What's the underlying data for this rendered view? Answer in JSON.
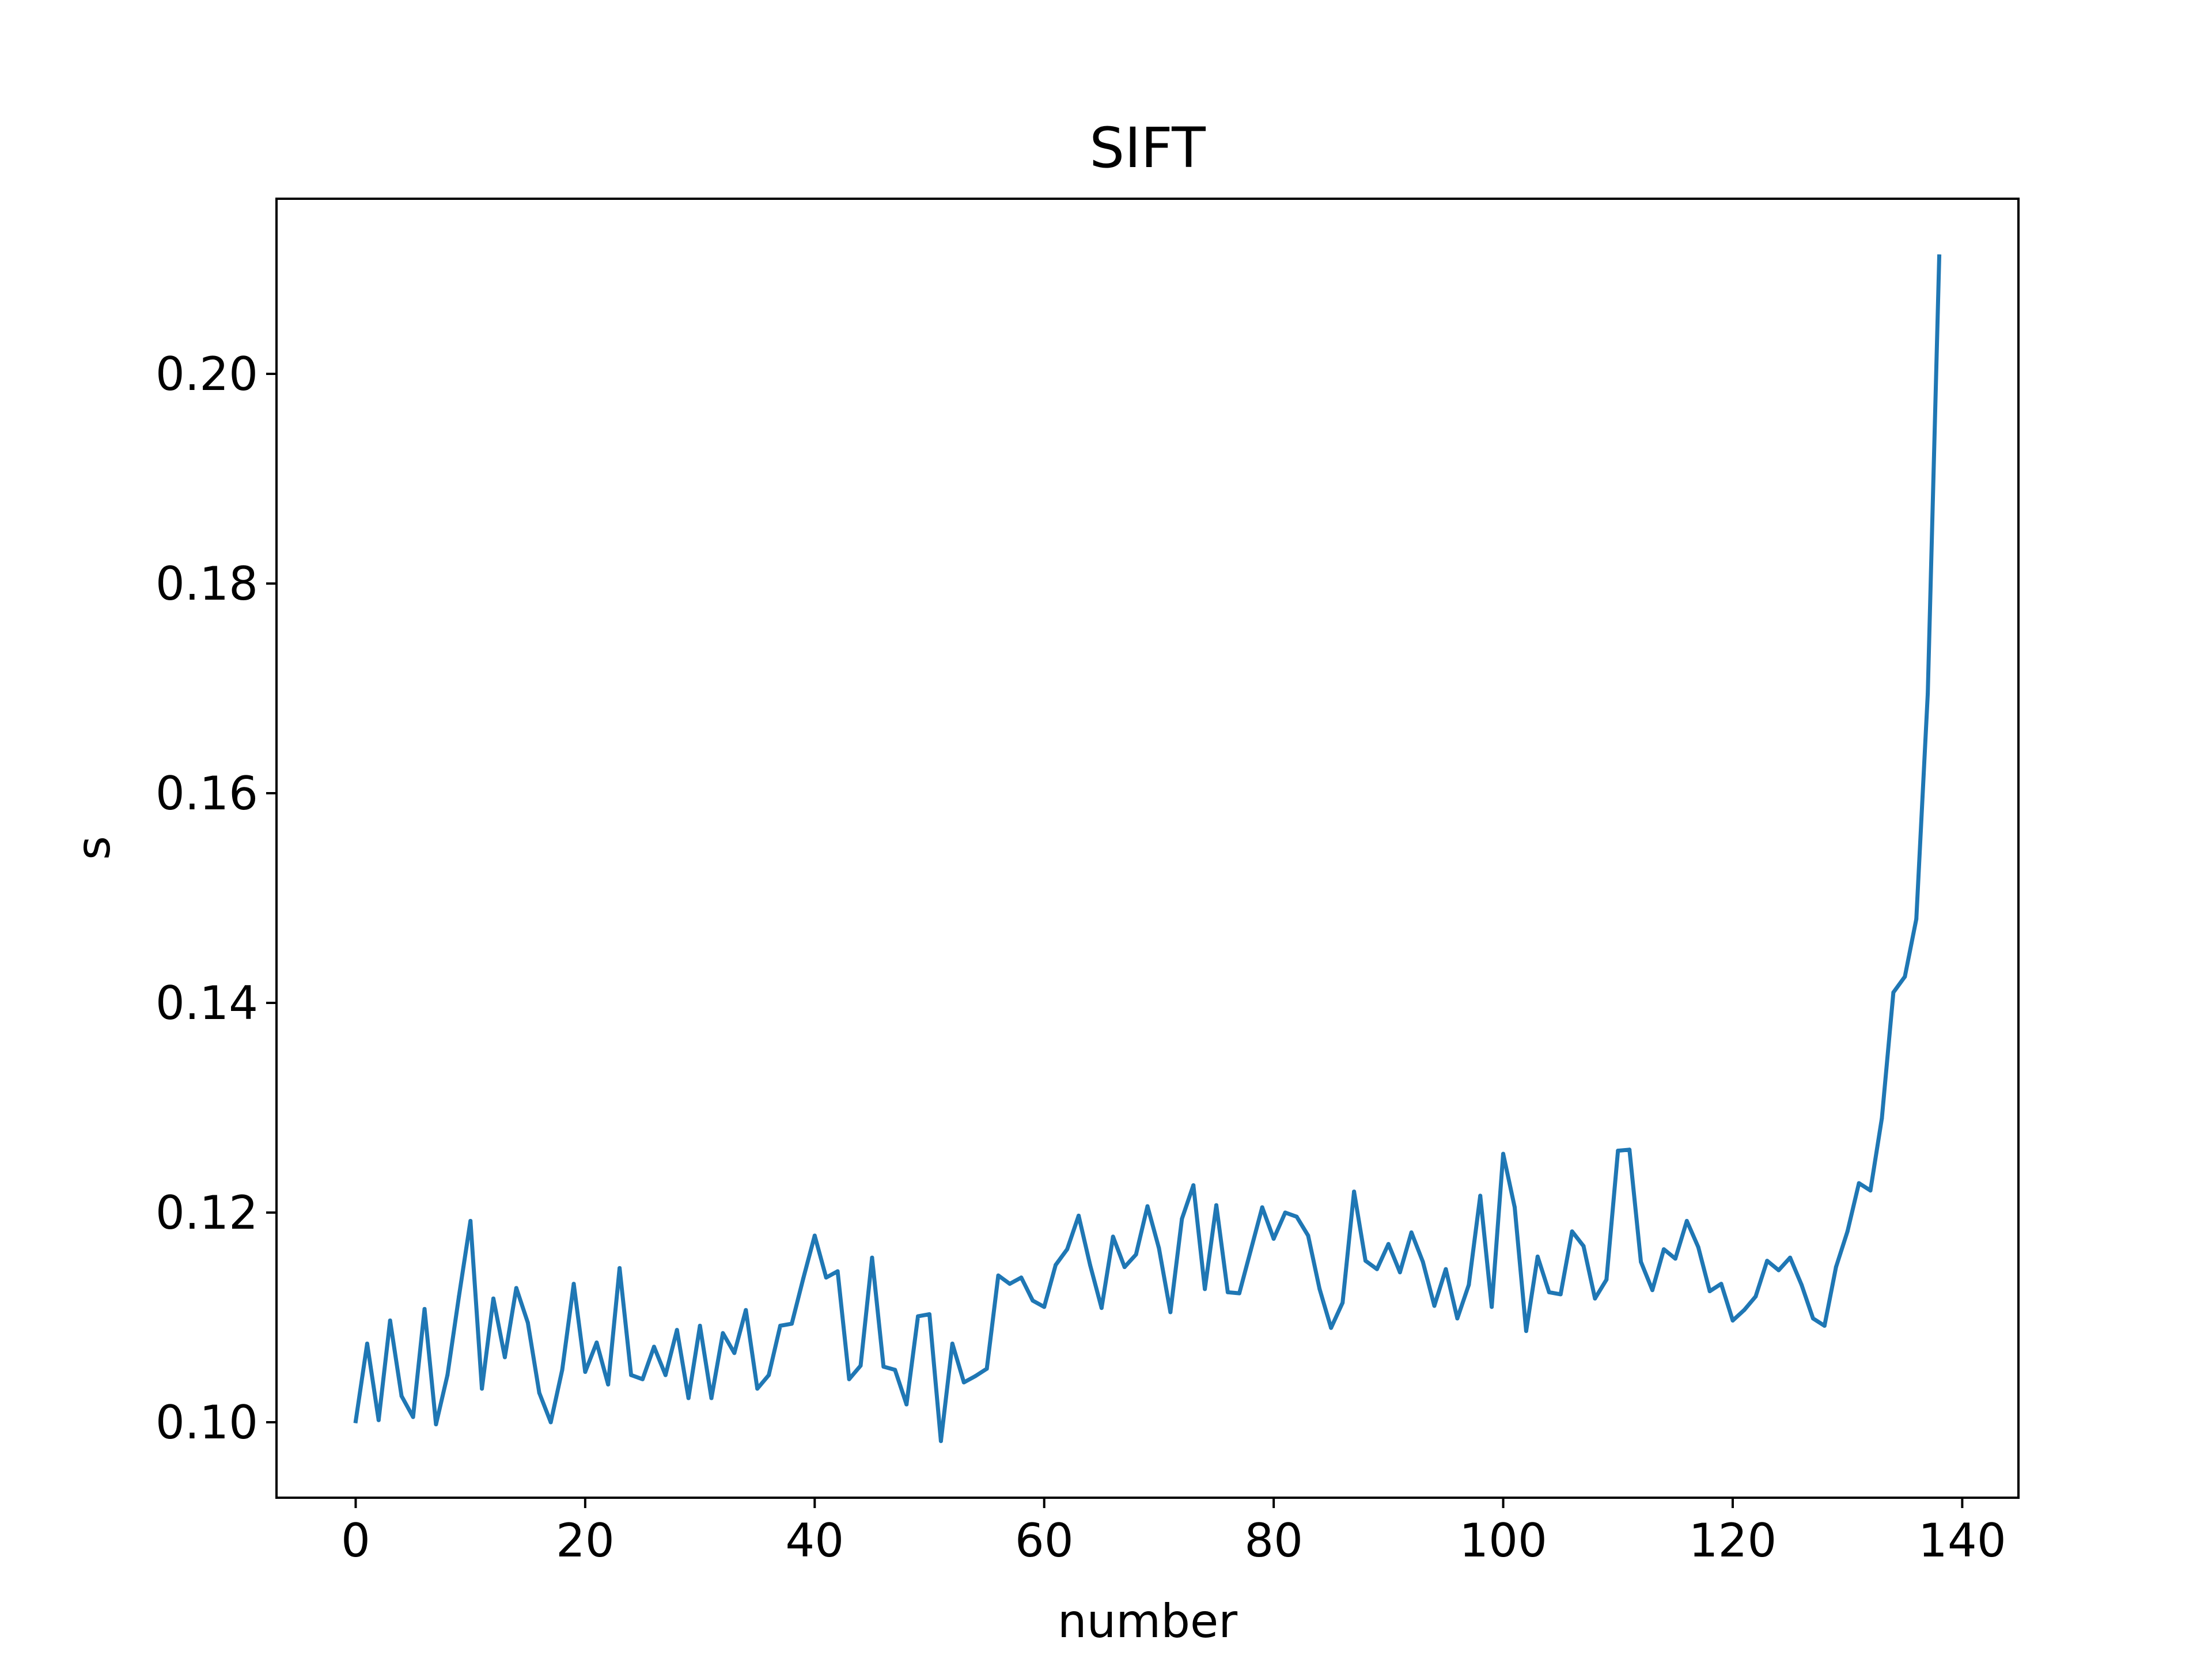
{
  "chart_data": {
    "type": "line",
    "title": "SIFT",
    "xlabel": "number",
    "ylabel": "s",
    "xlim": [
      -6.9,
      144.9
    ],
    "ylim": [
      0.0928,
      0.2167
    ],
    "xticks": [
      0,
      20,
      40,
      60,
      80,
      100,
      120,
      140
    ],
    "yticks": [
      0.1,
      0.12,
      0.14,
      0.16,
      0.18,
      0.2
    ],
    "xtick_labels": [
      "0",
      "20",
      "40",
      "60",
      "80",
      "100",
      "120",
      "140"
    ],
    "ytick_labels": [
      "0.10",
      "0.12",
      "0.14",
      "0.16",
      "0.18",
      "0.20"
    ],
    "grid": false,
    "legend": "none",
    "series": [
      {
        "color": "#1f77b4",
        "x": [
          0,
          1,
          2,
          3,
          4,
          5,
          6,
          7,
          8,
          9,
          10,
          11,
          12,
          13,
          14,
          15,
          16,
          17,
          18,
          19,
          20,
          21,
          22,
          23,
          24,
          25,
          26,
          27,
          28,
          29,
          30,
          31,
          32,
          33,
          34,
          35,
          36,
          37,
          38,
          39,
          40,
          41,
          42,
          43,
          44,
          45,
          46,
          47,
          48,
          49,
          50,
          51,
          52,
          53,
          54,
          55,
          56,
          57,
          58,
          59,
          60,
          61,
          62,
          63,
          64,
          65,
          66,
          67,
          68,
          69,
          70,
          71,
          72,
          73,
          74,
          75,
          76,
          77,
          78,
          79,
          80,
          81,
          82,
          83,
          84,
          85,
          86,
          87,
          88,
          89,
          90,
          91,
          92,
          93,
          94,
          95,
          96,
          97,
          98,
          99,
          100,
          101,
          102,
          103,
          104,
          105,
          106,
          107,
          108,
          109,
          110,
          111,
          112,
          113,
          114,
          115,
          116,
          117,
          118,
          119,
          120,
          121,
          122,
          123,
          124,
          125,
          126,
          127,
          128,
          129,
          130,
          131,
          132,
          133,
          134,
          135,
          136,
          137,
          138
        ],
        "y": [
          0.1001,
          0.1075,
          0.1002,
          0.1097,
          0.1025,
          0.1005,
          0.1108,
          0.0998,
          0.1045,
          0.112,
          0.1192,
          0.1032,
          0.1118,
          0.1062,
          0.1128,
          0.1095,
          0.1028,
          0.1,
          0.105,
          0.1132,
          0.1048,
          0.1076,
          0.1036,
          0.1147,
          0.1045,
          0.1041,
          0.1072,
          0.1045,
          0.1088,
          0.1023,
          0.1092,
          0.1023,
          0.1085,
          0.1066,
          0.1107,
          0.1032,
          0.1045,
          0.1092,
          0.1094,
          0.1137,
          0.1178,
          0.1138,
          0.1144,
          0.1041,
          0.1054,
          0.1157,
          0.1053,
          0.105,
          0.1017,
          0.1101,
          0.1103,
          0.0982,
          0.1075,
          0.1038,
          0.1044,
          0.1051,
          0.114,
          0.1132,
          0.1138,
          0.1116,
          0.111,
          0.115,
          0.1165,
          0.1197,
          0.115,
          0.1109,
          0.1177,
          0.1148,
          0.116,
          0.1206,
          0.1166,
          0.1105,
          0.1194,
          0.1226,
          0.1127,
          0.1207,
          0.1124,
          0.1123,
          0.1164,
          0.1205,
          0.1175,
          0.12,
          0.1196,
          0.1178,
          0.1127,
          0.109,
          0.1114,
          0.122,
          0.1154,
          0.1146,
          0.117,
          0.1143,
          0.1181,
          0.1153,
          0.1111,
          0.1146,
          0.1099,
          0.1131,
          0.1216,
          0.111,
          0.1256,
          0.1205,
          0.1087,
          0.1158,
          0.1124,
          0.1122,
          0.1182,
          0.1168,
          0.1118,
          0.1136,
          0.1259,
          0.126,
          0.1153,
          0.1126,
          0.1165,
          0.1156,
          0.1192,
          0.1167,
          0.1125,
          0.1132,
          0.1097,
          0.1107,
          0.112,
          0.1154,
          0.1145,
          0.1157,
          0.1131,
          0.1099,
          0.1092,
          0.1148,
          0.1182,
          0.1228,
          0.1221,
          0.129,
          0.141,
          0.1425,
          0.148,
          0.1695,
          0.2112
        ]
      }
    ]
  }
}
